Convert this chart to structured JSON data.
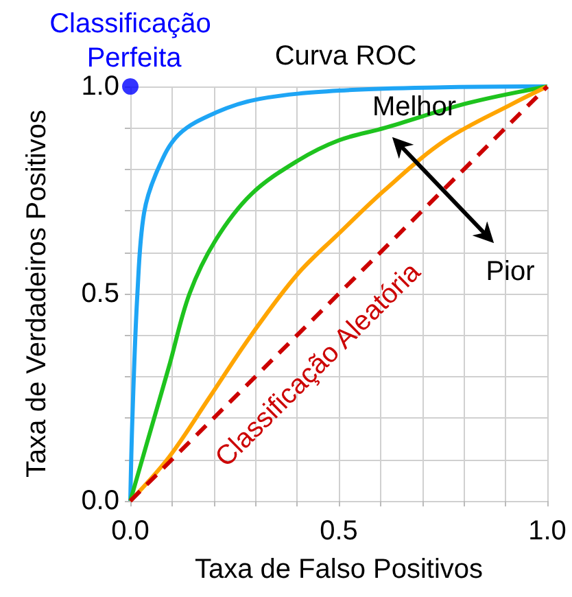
{
  "chart_data": {
    "type": "line",
    "title": "Curva ROC",
    "xlabel": "Taxa de Falso Positivos",
    "ylabel": "Taxa de Verdadeiros Positivos",
    "xlim": [
      0,
      1
    ],
    "ylim": [
      0,
      1
    ],
    "xticks": [
      {
        "value": 0,
        "label": "0.0"
      },
      {
        "value": 0.1,
        "label": null
      },
      {
        "value": 0.2,
        "label": null
      },
      {
        "value": 0.3,
        "label": null
      },
      {
        "value": 0.4,
        "label": null
      },
      {
        "value": 0.5,
        "label": "0.5"
      },
      {
        "value": 0.6,
        "label": null
      },
      {
        "value": 0.7,
        "label": null
      },
      {
        "value": 0.8,
        "label": null
      },
      {
        "value": 0.9,
        "label": null
      },
      {
        "value": 1,
        "label": "1.0"
      }
    ],
    "yticks": [
      {
        "value": 0,
        "label": "0.0"
      },
      {
        "value": 0.1,
        "label": null
      },
      {
        "value": 0.2,
        "label": null
      },
      {
        "value": 0.3,
        "label": null
      },
      {
        "value": 0.4,
        "label": null
      },
      {
        "value": 0.5,
        "label": "0.5"
      },
      {
        "value": 0.6,
        "label": null
      },
      {
        "value": 0.7,
        "label": null
      },
      {
        "value": 0.8,
        "label": null
      },
      {
        "value": 0.9,
        "label": null
      },
      {
        "value": 1,
        "label": "1.0"
      }
    ],
    "grid": true,
    "marker": "none",
    "series": [
      {
        "color": "#1ea5f5",
        "x": [
          0,
          0.005,
          0.017,
          0.033,
          0.066,
          0.116,
          0.205,
          0.31,
          0.5,
          0.75,
          1
        ],
        "values": [
          0,
          0.2,
          0.5,
          0.695,
          0.8,
          0.884,
          0.937,
          0.97,
          0.99,
          0.998,
          1
        ]
      },
      {
        "color": "#1ec31e",
        "x": [
          0,
          0.04,
          0.093,
          0.142,
          0.205,
          0.29,
          0.4,
          0.5,
          0.61,
          0.81,
          1
        ],
        "values": [
          0,
          0.14,
          0.325,
          0.5,
          0.63,
          0.74,
          0.82,
          0.87,
          0.9,
          0.96,
          1
        ]
      },
      {
        "color": "#ffa500",
        "x": [
          0,
          0.093,
          0.19,
          0.29,
          0.4,
          0.5,
          0.61,
          0.755,
          0.92,
          1
        ],
        "values": [
          0,
          0.106,
          0.25,
          0.4,
          0.546,
          0.645,
          0.75,
          0.87,
          0.96,
          1
        ]
      },
      {
        "color": "#cc0000",
        "line_style": "dashed",
        "x": [
          0,
          1
        ],
        "values": [
          0,
          1
        ]
      },
      {
        "type": "scatter",
        "color": "#0000ff",
        "marker": "circle",
        "x": [
          0
        ],
        "values": [
          1
        ]
      }
    ],
    "annotations": [
      {
        "text": "Classificação Perfeita",
        "x": 0,
        "y": 1
      },
      "Melhor",
      "Pior",
      "Classificação Aleatória"
    ]
  }
}
